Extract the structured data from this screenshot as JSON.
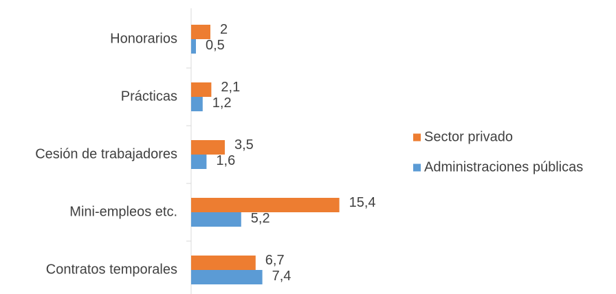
{
  "chart_data": {
    "type": "hbar",
    "categories": [
      "Honorarios",
      "Prácticas",
      "Cesión de trabajadores",
      "Mini-empleos etc.",
      "Contratos temporales"
    ],
    "series": [
      {
        "name": "Sector privado",
        "color": "#ed7d31",
        "values": [
          2,
          2.1,
          3.5,
          15.4,
          6.7
        ],
        "value_labels": [
          "2",
          "2,1",
          "3,5",
          "15,4",
          "6,7"
        ]
      },
      {
        "name": "Administraciones públicas",
        "color": "#5b9bd5",
        "values": [
          0.5,
          1.2,
          1.6,
          5.2,
          7.4
        ],
        "value_labels": [
          "0,5",
          "1,2",
          "1,6",
          "5,2",
          "7,4"
        ]
      }
    ],
    "xlim": [
      0,
      20
    ],
    "legend": "right"
  }
}
